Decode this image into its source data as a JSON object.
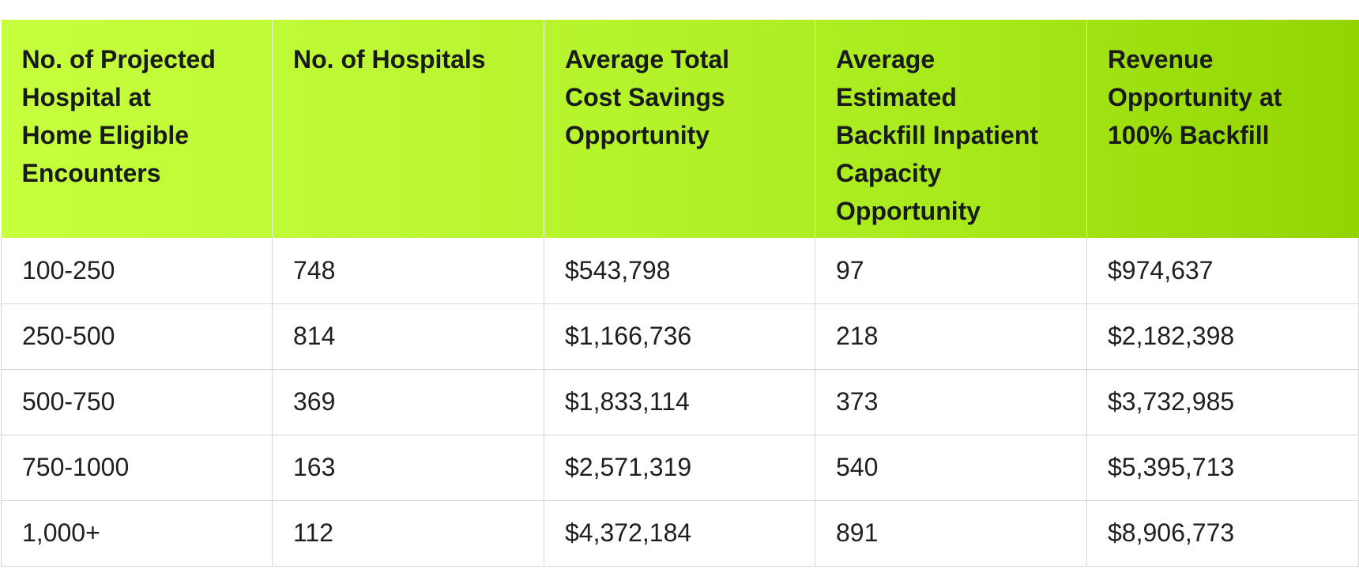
{
  "table": {
    "columns": [
      "No. of Projected\nHospital at\nHome Eligible\nEncounters",
      "No. of Hospitals",
      "Average Total\nCost Savings\nOpportunity",
      "Average\nEstimated\nBackfill Inpatient\nCapacity\nOpportunity",
      "Revenue\nOpportunity at\n100% Backfill"
    ],
    "rows": [
      [
        "100-250",
        "748",
        "$543,798",
        "97",
        "$974,637"
      ],
      [
        "250-500",
        "814",
        "$1,166,736",
        "218",
        "$2,182,398"
      ],
      [
        "500-750",
        "369",
        "$1,833,114",
        "373",
        "$3,732,985"
      ],
      [
        "750-1000",
        "163",
        "$2,571,319",
        "540",
        "$5,395,713"
      ],
      [
        "1,000+",
        "112",
        "$4,372,184",
        "891",
        "$8,906,773"
      ]
    ]
  },
  "colors": {
    "header_gradient_start": "#c6ff3d",
    "header_gradient_end": "#93d400",
    "grid_line": "#d6d6d6",
    "text": "#1f1f1f"
  }
}
